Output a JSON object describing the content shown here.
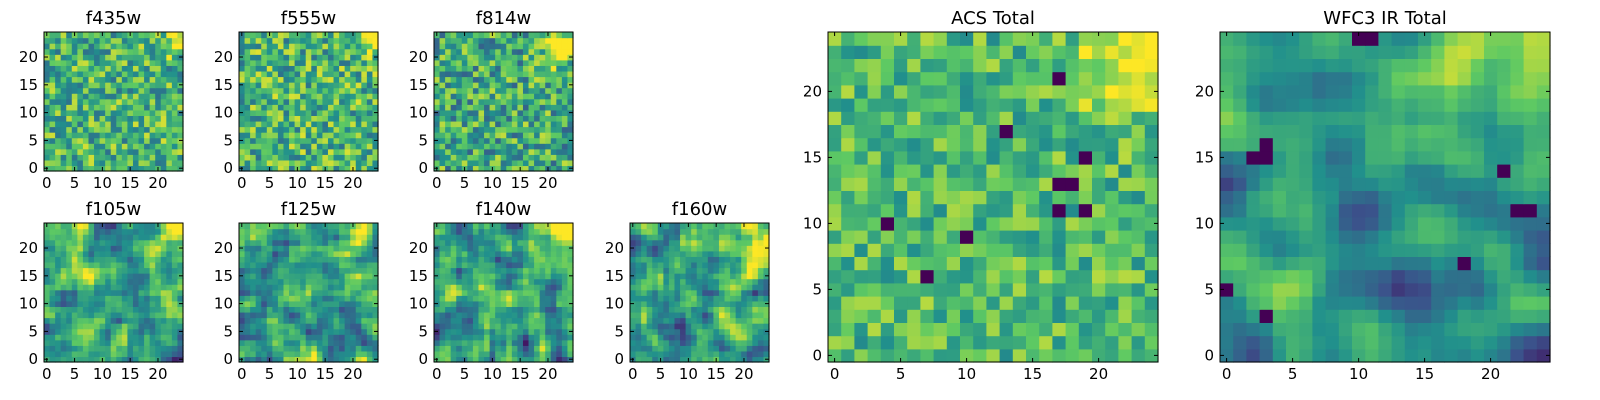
{
  "figure": {
    "background": "#ffffff"
  },
  "colormap": {
    "name": "viridis",
    "stops": [
      "#440154",
      "#3b528b",
      "#21908c",
      "#5dc963",
      "#fde725"
    ]
  },
  "chart_data": [
    {
      "type": "heatmap",
      "title": "f435w",
      "grid_size": 25,
      "xlim": [
        -0.5,
        24.5
      ],
      "ylim": [
        -0.5,
        24.5
      ],
      "xticks": [
        0,
        5,
        10,
        15,
        20
      ],
      "yticks": [
        0,
        5,
        10,
        15,
        20
      ],
      "value_range": [
        0,
        1
      ],
      "seed": 11,
      "smooth": 0,
      "mean": 0.64,
      "sd": 0.16,
      "hotspots": [
        {
          "x": 23,
          "y": 23,
          "r": 2.0,
          "a": 0.25
        }
      ]
    },
    {
      "type": "heatmap",
      "title": "f555w",
      "grid_size": 25,
      "xlim": [
        -0.5,
        24.5
      ],
      "ylim": [
        -0.5,
        24.5
      ],
      "xticks": [
        0,
        5,
        10,
        15,
        20
      ],
      "yticks": [
        0,
        5,
        10,
        15,
        20
      ],
      "value_range": [
        0,
        1
      ],
      "seed": 23,
      "smooth": 0,
      "mean": 0.66,
      "sd": 0.17,
      "hotspots": [
        {
          "x": 23,
          "y": 23,
          "r": 2.0,
          "a": 0.25
        }
      ]
    },
    {
      "type": "heatmap",
      "title": "f814w",
      "grid_size": 25,
      "xlim": [
        -0.5,
        24.5
      ],
      "ylim": [
        -0.5,
        24.5
      ],
      "xticks": [
        0,
        5,
        10,
        15,
        20
      ],
      "yticks": [
        0,
        5,
        10,
        15,
        20
      ],
      "value_range": [
        0,
        1
      ],
      "seed": 37,
      "smooth": 0,
      "mean": 0.62,
      "sd": 0.17,
      "hotspots": [
        {
          "x": 22,
          "y": 22,
          "r": 2.5,
          "a": 0.35
        }
      ]
    },
    {
      "type": "heatmap",
      "title": "f105w",
      "grid_size": 25,
      "xlim": [
        -0.5,
        24.5
      ],
      "ylim": [
        -0.5,
        24.5
      ],
      "xticks": [
        0,
        5,
        10,
        15,
        20
      ],
      "yticks": [
        0,
        5,
        10,
        15,
        20
      ],
      "value_range": [
        0,
        1
      ],
      "seed": 41,
      "smooth": 1,
      "mean": 0.58,
      "sd": 0.15,
      "hotspots": [
        {
          "x": 23,
          "y": 23,
          "r": 3.0,
          "a": 0.4
        }
      ]
    },
    {
      "type": "heatmap",
      "title": "f125w",
      "grid_size": 25,
      "xlim": [
        -0.5,
        24.5
      ],
      "ylim": [
        -0.5,
        24.5
      ],
      "xticks": [
        0,
        5,
        10,
        15,
        20
      ],
      "yticks": [
        0,
        5,
        10,
        15,
        20
      ],
      "value_range": [
        0,
        1
      ],
      "seed": 53,
      "smooth": 1,
      "mean": 0.55,
      "sd": 0.15,
      "hotspots": [
        {
          "x": 23,
          "y": 23,
          "r": 3.0,
          "a": 0.4
        }
      ]
    },
    {
      "type": "heatmap",
      "title": "f140w",
      "grid_size": 25,
      "xlim": [
        -0.5,
        24.5
      ],
      "ylim": [
        -0.5,
        24.5
      ],
      "xticks": [
        0,
        5,
        10,
        15,
        20
      ],
      "yticks": [
        0,
        5,
        10,
        15,
        20
      ],
      "value_range": [
        0,
        1
      ],
      "seed": 67,
      "smooth": 1,
      "mean": 0.56,
      "sd": 0.15,
      "hotspots": [
        {
          "x": 23,
          "y": 23,
          "r": 3.5,
          "a": 0.45
        }
      ]
    },
    {
      "type": "heatmap",
      "title": "f160w",
      "grid_size": 25,
      "xlim": [
        -0.5,
        24.5
      ],
      "ylim": [
        -0.5,
        24.5
      ],
      "xticks": [
        0,
        5,
        10,
        15,
        20
      ],
      "yticks": [
        0,
        5,
        10,
        15,
        20
      ],
      "value_range": [
        0,
        1
      ],
      "seed": 79,
      "smooth": 1,
      "mean": 0.56,
      "sd": 0.15,
      "hotspots": [
        {
          "x": 23,
          "y": 23,
          "r": 4.0,
          "a": 0.45
        }
      ]
    },
    {
      "type": "heatmap",
      "title": "ACS Total",
      "grid_size": 25,
      "xlim": [
        -0.5,
        24.5
      ],
      "ylim": [
        -0.5,
        24.5
      ],
      "xticks": [
        0,
        5,
        10,
        15,
        20
      ],
      "yticks": [
        0,
        5,
        10,
        15,
        20
      ],
      "value_range": [
        0,
        1
      ],
      "seed": 97,
      "smooth": 0,
      "mean": 0.68,
      "sd": 0.12,
      "hotspots": [
        {
          "x": 22,
          "y": 22,
          "r": 2.5,
          "a": 0.35
        }
      ],
      "lows": [
        [
          4,
          10
        ],
        [
          7,
          6
        ],
        [
          17,
          21
        ],
        [
          17,
          13
        ],
        [
          18,
          13
        ],
        [
          19,
          15
        ],
        [
          10,
          9
        ],
        [
          13,
          17
        ],
        [
          17,
          11
        ],
        [
          19,
          11
        ]
      ]
    },
    {
      "type": "heatmap",
      "title": "WFC3 IR Total",
      "grid_size": 25,
      "xlim": [
        -0.5,
        24.5
      ],
      "ylim": [
        -0.5,
        24.5
      ],
      "xticks": [
        0,
        5,
        10,
        15,
        20
      ],
      "yticks": [
        0,
        5,
        10,
        15,
        20
      ],
      "value_range": [
        0,
        1
      ],
      "seed": 131,
      "smooth": 2,
      "mean": 0.52,
      "sd": 0.12,
      "hotspots": [
        {
          "x": 23,
          "y": 23,
          "r": 4.0,
          "a": 0.45
        }
      ],
      "lows": [
        [
          3,
          15
        ],
        [
          3,
          16
        ],
        [
          2,
          15
        ],
        [
          10,
          24
        ],
        [
          11,
          24
        ],
        [
          0,
          5
        ],
        [
          3,
          3
        ],
        [
          23,
          11
        ],
        [
          22,
          11
        ],
        [
          18,
          7
        ],
        [
          21,
          14
        ]
      ]
    }
  ]
}
